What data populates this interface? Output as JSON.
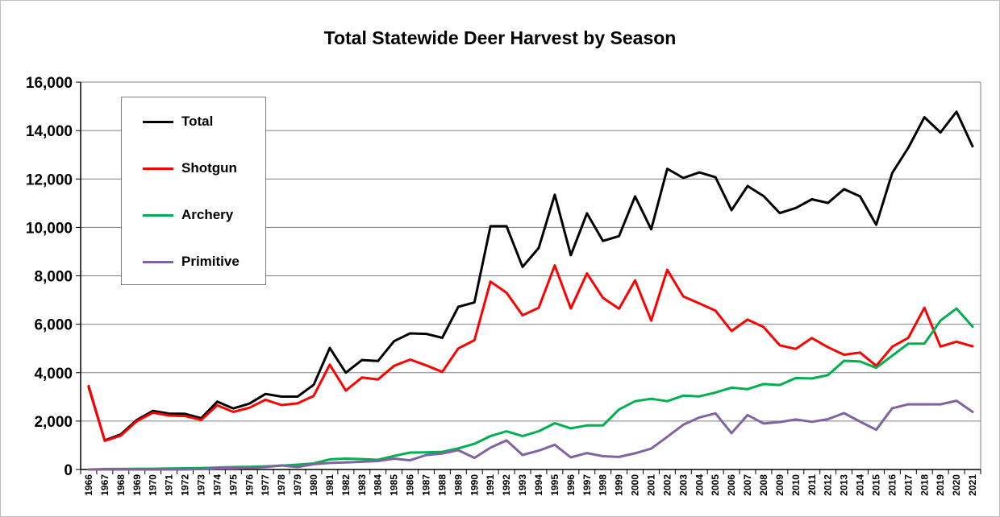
{
  "chart_data": {
    "type": "line",
    "title": "Total Statewide Deer Harvest by Season",
    "xlabel": "",
    "ylabel": "",
    "ylim": [
      0,
      16000
    ],
    "yticks": [
      "0",
      "2,000",
      "4,000",
      "6,000",
      "8,000",
      "10,000",
      "12,000",
      "14,000",
      "16,000"
    ],
    "legend_position": "top-left",
    "grid": true,
    "categories": [
      "1966",
      "1967",
      "1968",
      "1969",
      "1970",
      "1971",
      "1972",
      "1973",
      "1974",
      "1975",
      "1976",
      "1977",
      "1978",
      "1979",
      "1980",
      "1981",
      "1982",
      "1983",
      "1984",
      "1985",
      "1986",
      "1987",
      "1988",
      "1989",
      "1990",
      "1991",
      "1992",
      "1993",
      "1994",
      "1995",
      "1996",
      "1997",
      "1998",
      "1999",
      "2000",
      "2001",
      "2002",
      "2003",
      "2004",
      "2005",
      "2006",
      "2007",
      "2008",
      "2009",
      "2010",
      "2011",
      "2012",
      "2013",
      "2014",
      "2015",
      "2016",
      "2017",
      "2018",
      "2019",
      "2020",
      "2021"
    ],
    "series": [
      {
        "name": "Total",
        "color": "#000000",
        "values": [
          3400,
          1200,
          1450,
          2050,
          2420,
          2310,
          2300,
          2120,
          2800,
          2520,
          2720,
          3120,
          3010,
          3010,
          3500,
          5020,
          4000,
          4520,
          4480,
          5300,
          5620,
          5600,
          5440,
          6720,
          6900,
          10050,
          10050,
          8370,
          9150,
          11350,
          8850,
          10580,
          9440,
          9640,
          11280,
          9920,
          12420,
          12040,
          12270,
          12070,
          10710,
          11710,
          11290,
          10590,
          10800,
          11160,
          11010,
          11580,
          11280,
          10110,
          12250,
          13290,
          14550,
          13920,
          14780,
          13350
        ]
      },
      {
        "name": "Shotgun",
        "color": "#ff0000",
        "values": [
          3450,
          1180,
          1400,
          2000,
          2350,
          2230,
          2210,
          2050,
          2650,
          2380,
          2550,
          2880,
          2660,
          2730,
          3040,
          4330,
          3260,
          3800,
          3720,
          4280,
          4540,
          4300,
          4030,
          5000,
          5340,
          7760,
          7300,
          6370,
          6680,
          8430,
          6650,
          8100,
          7090,
          6640,
          7810,
          6150,
          8250,
          7150,
          6860,
          6560,
          5720,
          6190,
          5880,
          5130,
          4980,
          5430,
          5050,
          4740,
          4830,
          4280,
          5070,
          5440,
          6680,
          5080,
          5280,
          5090
        ]
      },
      {
        "name": "Archery",
        "color": "#00b050",
        "values": [
          0,
          20,
          20,
          30,
          30,
          40,
          50,
          60,
          80,
          100,
          110,
          130,
          160,
          200,
          250,
          420,
          450,
          430,
          400,
          560,
          700,
          710,
          730,
          870,
          1060,
          1380,
          1580,
          1380,
          1580,
          1910,
          1700,
          1820,
          1820,
          2480,
          2820,
          2920,
          2820,
          3050,
          3020,
          3180,
          3380,
          3320,
          3530,
          3490,
          3780,
          3760,
          3900,
          4490,
          4460,
          4200,
          4700,
          5200,
          5200,
          6150,
          6650,
          5900
        ]
      },
      {
        "name": "Primitive",
        "color": "#8064a2",
        "values": [
          0,
          0,
          0,
          0,
          0,
          0,
          0,
          20,
          50,
          50,
          70,
          100,
          170,
          100,
          220,
          270,
          290,
          320,
          350,
          450,
          380,
          600,
          660,
          800,
          480,
          900,
          1200,
          600,
          780,
          1020,
          500,
          680,
          550,
          520,
          670,
          860,
          1350,
          1850,
          2150,
          2320,
          1500,
          2250,
          1900,
          1960,
          2070,
          1970,
          2080,
          2330,
          1980,
          1640,
          2530,
          2690,
          2690,
          2690,
          2840,
          2380
        ]
      }
    ]
  }
}
